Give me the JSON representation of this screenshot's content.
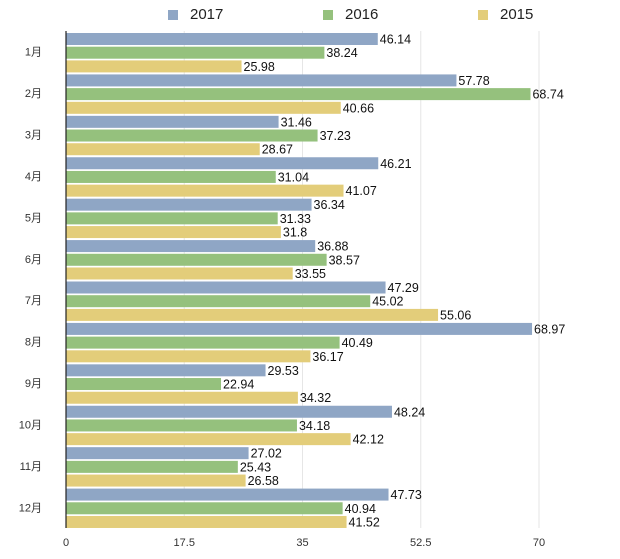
{
  "chart_data": {
    "type": "bar",
    "orientation": "horizontal",
    "title": "",
    "xlabel": "",
    "ylabel": "",
    "categories": [
      "1月",
      "2月",
      "3月",
      "4月",
      "5月",
      "6月",
      "7月",
      "8月",
      "9月",
      "10月",
      "11月",
      "12月"
    ],
    "series": [
      {
        "name": "2017",
        "color": "#8fa6c5",
        "values": [
          46.14,
          57.78,
          31.46,
          46.21,
          36.34,
          36.88,
          47.29,
          68.97,
          29.53,
          48.24,
          27.02,
          47.73
        ]
      },
      {
        "name": "2016",
        "color": "#95c17d",
        "values": [
          38.24,
          68.74,
          37.23,
          31.04,
          31.33,
          38.57,
          45.02,
          40.49,
          22.94,
          34.18,
          25.43,
          40.94
        ]
      },
      {
        "name": "2015",
        "color": "#e3cd7a",
        "values": [
          25.98,
          40.66,
          28.67,
          41.07,
          31.8,
          33.55,
          55.06,
          36.17,
          34.32,
          42.12,
          26.58,
          41.52
        ]
      }
    ],
    "xlim": [
      0,
      70
    ],
    "xticks": [
      "0",
      "17.5",
      "35",
      "52.5",
      "70"
    ],
    "grid": true,
    "legend_position": "top"
  }
}
